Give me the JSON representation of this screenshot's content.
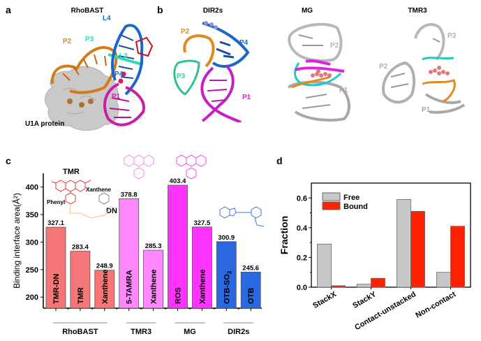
{
  "panels": {
    "a": {
      "letter": "a",
      "title": "RhoBAST",
      "labels": {
        "L4": "L4",
        "P3": "P3",
        "P2": "P2",
        "L3": "L3",
        "P4": "P4",
        "P1": "P1",
        "protein": "U1A protein"
      }
    },
    "b": {
      "letter": "b",
      "dir2s": {
        "title": "DIR2s",
        "labels": {
          "P2": "P2",
          "P4": "P4",
          "P3": "P3",
          "P1": "P1"
        }
      },
      "mg": {
        "title": "MG",
        "labels": {
          "P2": "P2",
          "P1": "P1"
        }
      },
      "tmr3": {
        "title": "TMR3",
        "labels": {
          "P3": "P3",
          "P2": "P2",
          "P1": "P1"
        }
      }
    },
    "c": {
      "letter": "c",
      "annotations": {
        "tmr": "TMR",
        "xanthene": "Xanthene",
        "phenyl": "Phenyl",
        "dn": "DN"
      }
    },
    "d": {
      "letter": "d"
    }
  },
  "chart_data": [
    {
      "type": "bar",
      "title": "",
      "xlabel": "",
      "ylabel": "Binding interface area(Å²)",
      "ylim": [
        180,
        425
      ],
      "yticks": [
        200,
        250,
        300,
        350,
        400
      ],
      "categories": [
        "TMR-DN",
        "TMR",
        "Xanthene",
        "5-TAMRA",
        "Xanthene",
        "ROS",
        "Xanthene",
        "OTB-SO3",
        "OTB"
      ],
      "values": [
        327.1,
        283.4,
        248.9,
        378.8,
        285.3,
        403.4,
        327.5,
        300.9,
        245.6
      ],
      "value_labels": [
        "327.1",
        "283.4",
        "248.9",
        "378.8",
        "285.3",
        "403.4",
        "327.5",
        "300.9",
        "245.6"
      ],
      "colors": [
        "#f47676",
        "#f47676",
        "#f47676",
        "#ff88ff",
        "#ff88ff",
        "#ff33ff",
        "#ff33ff",
        "#2a68e0",
        "#2a68e0"
      ],
      "groups": [
        {
          "name": "RhoBAST",
          "members": [
            0,
            1,
            2
          ]
        },
        {
          "name": "TMR3",
          "members": [
            3,
            4
          ]
        },
        {
          "name": "MG",
          "members": [
            5,
            6
          ]
        },
        {
          "name": "DIR2s",
          "members": [
            7,
            8
          ]
        }
      ],
      "grid": false,
      "legend": null
    },
    {
      "type": "bar",
      "title": "",
      "xlabel": "",
      "ylabel": "Fraction",
      "ylim": [
        0,
        0.7
      ],
      "yticks": [
        "0.0",
        "0.2",
        "0.4",
        "0.6"
      ],
      "categories": [
        "StackX",
        "StackY",
        "Contact-unstacked",
        "Non-contact"
      ],
      "series": [
        {
          "name": "Free",
          "color": "#c8c8c8",
          "values": [
            0.29,
            0.02,
            0.59,
            0.1
          ]
        },
        {
          "name": "Bound",
          "color": "#ff2200",
          "values": [
            0.01,
            0.06,
            0.51,
            0.41
          ]
        }
      ],
      "grid": false,
      "legend": {
        "position": "upper-left",
        "entries": [
          "Free",
          "Bound"
        ]
      }
    }
  ]
}
